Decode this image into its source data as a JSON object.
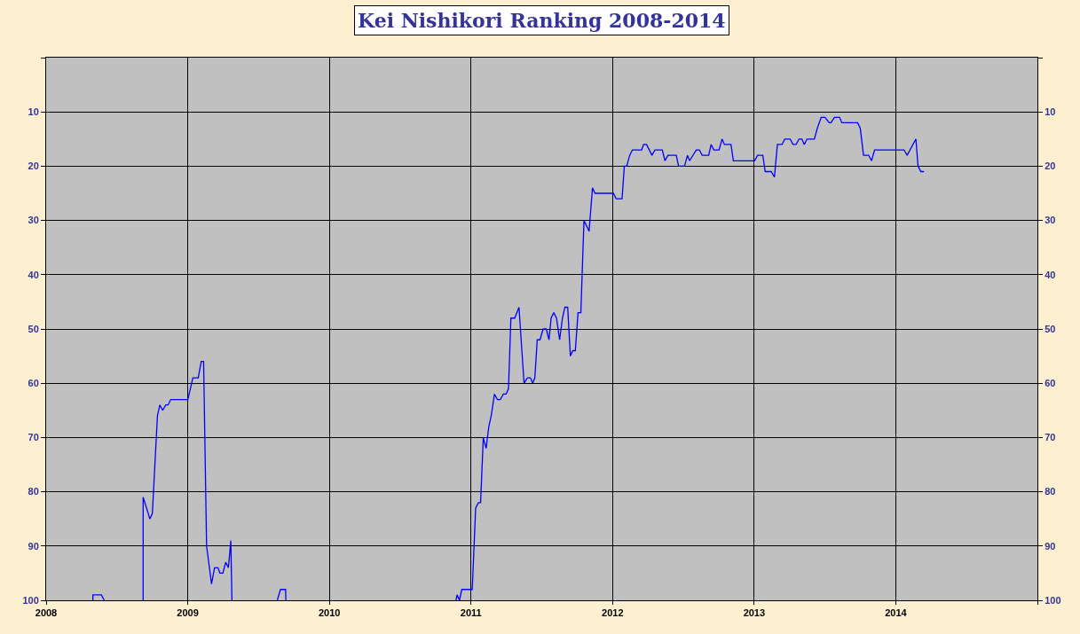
{
  "chart_data": {
    "type": "line",
    "title": "Kei Nishikori Ranking 2008-2014",
    "x": [
      2008.33,
      2008.33,
      2008.39,
      2008.41,
      2008.42,
      2008.685,
      2008.685,
      2008.721,
      2008.732,
      2008.75,
      2008.786,
      2008.803,
      2008.823,
      2008.845,
      2008.861,
      2008.88,
      2009.001,
      2009.036,
      2009.074,
      2009.095,
      2009.112,
      2009.133,
      2009.168,
      2009.189,
      2009.214,
      2009.227,
      2009.248,
      2009.268,
      2009.287,
      2009.304,
      2009.312,
      2009.32,
      2009.632,
      2009.655,
      2009.691,
      2009.693,
      2009.7,
      2010.894,
      2010.902,
      2010.919,
      2010.935,
      2011.009,
      2011.033,
      2011.053,
      2011.068,
      2011.087,
      2011.107,
      2011.126,
      2011.143,
      2011.166,
      2011.187,
      2011.207,
      2011.229,
      2011.248,
      2011.265,
      2011.282,
      2011.309,
      2011.339,
      2011.375,
      2011.399,
      2011.42,
      2011.436,
      2011.451,
      2011.468,
      2011.487,
      2011.51,
      2011.532,
      2011.551,
      2011.566,
      2011.585,
      2011.604,
      2011.626,
      2011.646,
      2011.663,
      2011.683,
      2011.702,
      2011.719,
      2011.737,
      2011.756,
      2011.776,
      2011.798,
      2011.834,
      2011.858,
      2011.876,
      2012.006,
      2012.025,
      2012.067,
      2012.083,
      2012.1,
      2012.121,
      2012.14,
      2012.205,
      2012.219,
      2012.24,
      2012.278,
      2012.299,
      2012.351,
      2012.37,
      2012.391,
      2012.45,
      2012.466,
      2012.508,
      2012.529,
      2012.544,
      2012.591,
      2012.613,
      2012.633,
      2012.679,
      2012.696,
      2012.715,
      2012.752,
      2012.773,
      2012.79,
      2012.836,
      2012.853,
      2013.003,
      2013.024,
      2013.061,
      2013.078,
      2013.12,
      2013.143,
      2013.164,
      2013.197,
      2013.216,
      2013.254,
      2013.274,
      2013.296,
      2013.317,
      2013.337,
      2013.354,
      2013.373,
      2013.425,
      2013.446,
      2013.473,
      2013.5,
      2013.53,
      2013.542,
      2013.567,
      2013.603,
      2013.619,
      2013.73,
      2013.749,
      2013.772,
      2013.808,
      2013.829,
      2013.85,
      2014.058,
      2014.08,
      2014.142,
      2014.157,
      2014.177,
      2014.199
    ],
    "series": [
      {
        "color": "#0000ff",
        "values": [
          100,
          99,
          99,
          100,
          null,
          100,
          81,
          84,
          85,
          84,
          66,
          64,
          65,
          64,
          64,
          63,
          63,
          59,
          59,
          56,
          56,
          90,
          97,
          94,
          94,
          95,
          95,
          93,
          94,
          89,
          100,
          null,
          100,
          98,
          98,
          100,
          null,
          100,
          99,
          100,
          98,
          98,
          83,
          82,
          82,
          70,
          72,
          68,
          66,
          62,
          63,
          63,
          62,
          62,
          61,
          48,
          48,
          46,
          60,
          59,
          59,
          60,
          59,
          52,
          52,
          50,
          50,
          52,
          48,
          47,
          48,
          52,
          48,
          46,
          46,
          55,
          54,
          54,
          47,
          47,
          30,
          32,
          24,
          25,
          25,
          26,
          26,
          20,
          20,
          18,
          17,
          17,
          16,
          16,
          18,
          17,
          17,
          19,
          18,
          18,
          20,
          20,
          18,
          19,
          17,
          17,
          18,
          18,
          16,
          17,
          17,
          15,
          16,
          16,
          19,
          19,
          18,
          18,
          21,
          21,
          22,
          16,
          16,
          15,
          15,
          16,
          16,
          15,
          15,
          16,
          15,
          15,
          13,
          11,
          11,
          12,
          12,
          11,
          11,
          12,
          12,
          13,
          18,
          18,
          19,
          17,
          17,
          18,
          15,
          20,
          21,
          21
        ]
      }
    ],
    "xlim": [
      2008,
      2015
    ],
    "xticks": [
      2008,
      2009,
      2010,
      2011,
      2012,
      2013,
      2014,
      {
        "value": 2015,
        "label": null
      }
    ],
    "ylim": [
      100,
      0
    ],
    "yticks": [
      {
        "value": 0,
        "label": null
      },
      10,
      20,
      30,
      40,
      50,
      60,
      70,
      80,
      90,
      100
    ],
    "y2lim": [
      100,
      0
    ],
    "y2ticks": [
      {
        "value": 0,
        "label": null
      },
      10,
      20,
      30,
      40,
      50,
      60,
      70,
      80,
      90,
      100
    ],
    "grid": true,
    "marker": "none",
    "line_style": "solid"
  }
}
